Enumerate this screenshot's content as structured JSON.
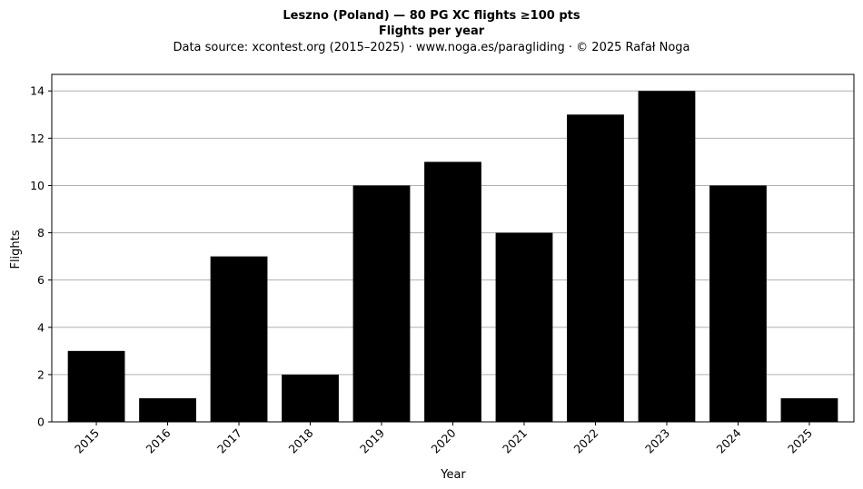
{
  "chart_data": {
    "type": "bar",
    "title": "Leszno (Poland)  —  80 PG XC flights ≥100 pts",
    "subtitle": "Flights per year",
    "source_note": "Data source: xcontest.org (2015–2025)  ·  www.noga.es/paragliding  ·  © 2025 Rafał Noga",
    "xlabel": "Year",
    "ylabel": "Flights",
    "categories": [
      "2015",
      "2016",
      "2017",
      "2018",
      "2019",
      "2020",
      "2021",
      "2022",
      "2023",
      "2024",
      "2025"
    ],
    "values": [
      3,
      1,
      7,
      2,
      10,
      11,
      8,
      13,
      14,
      10,
      1
    ],
    "ylim": [
      0,
      14.7
    ],
    "yticks": [
      0,
      2,
      4,
      6,
      8,
      10,
      12,
      14
    ],
    "grid": "horizontal",
    "bar_color": "#000000",
    "grid_color": "#b0b0b0"
  }
}
